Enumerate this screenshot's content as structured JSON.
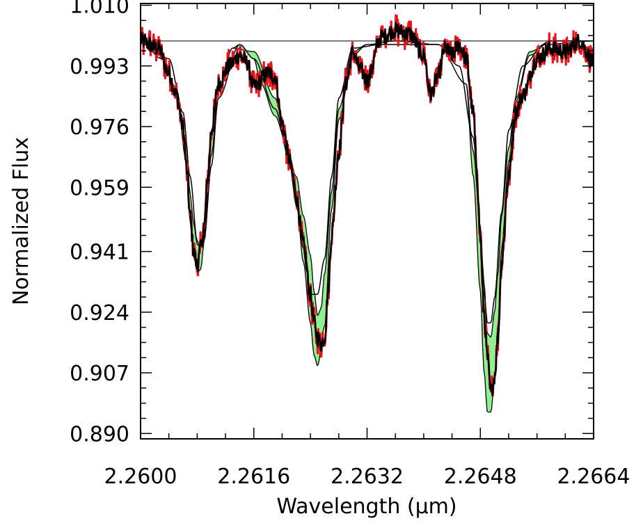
{
  "chart_data": {
    "type": "line",
    "xlabel": "Wavelength (μm)",
    "ylabel": "Normalized Flux",
    "xlim": [
      2.26,
      2.2664
    ],
    "ylim": [
      0.8885,
      1.0105
    ],
    "x_ticks": [
      2.26,
      2.2616,
      2.2632,
      2.2648,
      2.2664
    ],
    "x_tick_labels": [
      "2.2600",
      "2.2616",
      "2.2632",
      "2.2648",
      "2.2664"
    ],
    "y_ticks": [
      0.89,
      0.907,
      0.924,
      0.941,
      0.959,
      0.976,
      0.993,
      1.01
    ],
    "y_tick_labels": [
      "0.890",
      "0.907",
      "0.924",
      "0.941",
      "0.959",
      "0.976",
      "0.993",
      "1.010"
    ],
    "continuum_level": 1.0,
    "grid": false,
    "colors": {
      "observed_spectrum": "#e8141c",
      "smoothed_spectrum": "#000000",
      "model_band": "#8ff08f",
      "model_line": "#000000",
      "continuum": "#555555"
    },
    "series": [
      {
        "x": [
          2.26,
          2.2603,
          2.2605,
          2.26065,
          2.2607,
          2.26075,
          2.2608,
          2.26085,
          2.2609,
          2.26095,
          2.261,
          2.2611,
          2.2613,
          2.2614,
          2.2616,
          2.2617,
          2.2619,
          2.26205,
          2.2622,
          2.2623,
          2.2624,
          2.26245,
          2.2625,
          2.26255,
          2.2626,
          2.2627,
          2.2628,
          2.263,
          2.2632,
          2.2636,
          2.2642,
          2.2646,
          2.2647,
          2.2648,
          2.26485,
          2.2649,
          2.26495,
          2.265,
          2.26505,
          2.2651,
          2.2652,
          2.2653,
          2.2655,
          2.2658,
          2.2664
        ],
        "y": [
          1.0,
          0.995,
          0.987,
          0.971,
          0.957,
          0.949,
          0.943,
          0.942,
          0.946,
          0.957,
          0.973,
          0.987,
          0.998,
          0.999,
          0.995,
          0.988,
          0.979,
          0.972,
          0.962,
          0.951,
          0.94,
          0.93,
          0.923,
          0.925,
          0.935,
          0.958,
          0.981,
          0.997,
          0.999,
          1.0,
          0.999,
          0.988,
          0.969,
          0.948,
          0.933,
          0.918,
          0.917,
          0.924,
          0.935,
          0.951,
          0.97,
          0.984,
          0.997,
          1.0,
          1.0
        ]
      },
      {
        "x": [
          2.26,
          2.2604,
          2.2606,
          2.2607,
          2.2608,
          2.26085,
          2.2609,
          2.261,
          2.2611,
          2.2614,
          2.2616,
          2.2619,
          2.2621,
          2.2622,
          2.2623,
          2.26235,
          2.2624,
          2.2625,
          2.2626,
          2.2627,
          2.2628,
          2.263,
          2.2634,
          2.2642,
          2.2645,
          2.2647,
          2.2648,
          2.26485,
          2.2649,
          2.26495,
          2.265,
          2.2651,
          2.2652,
          2.2654,
          2.2657,
          2.2664
        ],
        "y": [
          1.0,
          0.995,
          0.98,
          0.962,
          0.944,
          0.942,
          0.945,
          0.965,
          0.984,
          0.999,
          0.995,
          0.981,
          0.967,
          0.954,
          0.942,
          0.935,
          0.929,
          0.929,
          0.939,
          0.962,
          0.984,
          0.998,
          0.999,
          0.999,
          0.993,
          0.973,
          0.946,
          0.93,
          0.921,
          0.921,
          0.928,
          0.952,
          0.975,
          0.993,
          0.999,
          1.0
        ]
      },
      {
        "x": [
          2.26,
          2.2603,
          2.2605,
          2.26065,
          2.2607,
          2.26075,
          2.2608,
          2.26085,
          2.2609,
          2.261,
          2.2611,
          2.2613,
          2.2616,
          2.2619,
          2.26205,
          2.2622,
          2.2623,
          2.2624,
          2.26245,
          2.2625,
          2.2626,
          2.2627,
          2.2628,
          2.263,
          2.2632,
          2.2636,
          2.2642,
          2.2646,
          2.2647,
          2.2648,
          2.26485,
          2.2649,
          2.26495,
          2.265,
          2.26505,
          2.2651,
          2.2652,
          2.2653,
          2.2655,
          2.2658,
          2.2664
        ],
        "y": [
          1.0,
          0.995,
          0.986,
          0.966,
          0.949,
          0.94,
          0.935,
          0.936,
          0.944,
          0.968,
          0.986,
          0.998,
          0.997,
          0.984,
          0.972,
          0.956,
          0.938,
          0.921,
          0.912,
          0.909,
          0.92,
          0.953,
          0.978,
          0.996,
          0.999,
          1.0,
          0.999,
          0.988,
          0.962,
          0.93,
          0.908,
          0.896,
          0.896,
          0.905,
          0.921,
          0.942,
          0.966,
          0.983,
          0.996,
          1.0,
          1.0
        ]
      },
      {
        "x": [
          2.26,
          2.26025,
          2.2604,
          2.2605,
          2.2606,
          2.26065,
          2.2607,
          2.26075,
          2.2608,
          2.26085,
          2.2609,
          2.26095,
          2.261,
          2.2611,
          2.26125,
          2.2614,
          2.2615,
          2.2616,
          2.2618,
          2.2619,
          2.262,
          2.2621,
          2.26215,
          2.2622,
          2.2623,
          2.2624,
          2.26245,
          2.2625,
          2.26255,
          2.2626,
          2.26265,
          2.2627,
          2.2628,
          2.2629,
          2.263,
          2.2631,
          2.2632,
          2.2634,
          2.2636,
          2.2638,
          2.264,
          2.2641,
          2.2642,
          2.2643,
          2.2644,
          2.2645,
          2.2646,
          2.2647,
          2.26475,
          2.2648,
          2.26485,
          2.2649,
          2.26495,
          2.265,
          2.26505,
          2.2651,
          2.2652,
          2.2653,
          2.2654,
          2.2656,
          2.2658,
          2.266,
          2.2662,
          2.2664
        ],
        "y": [
          1.0,
          0.998,
          0.991,
          0.985,
          0.976,
          0.964,
          0.951,
          0.941,
          0.937,
          0.942,
          0.948,
          0.962,
          0.975,
          0.988,
          0.993,
          0.996,
          0.994,
          0.987,
          0.991,
          0.99,
          0.977,
          0.967,
          0.962,
          0.956,
          0.943,
          0.929,
          0.921,
          0.917,
          0.915,
          0.917,
          0.93,
          0.946,
          0.969,
          0.988,
          0.997,
          0.992,
          0.989,
          1.001,
          1.003,
          1.002,
          0.996,
          0.985,
          0.99,
          0.998,
          0.996,
          0.999,
          0.995,
          0.98,
          0.964,
          0.945,
          0.924,
          0.911,
          0.901,
          0.906,
          0.917,
          0.938,
          0.962,
          0.98,
          0.985,
          0.995,
          0.998,
          0.997,
          1.0,
          0.994
        ]
      }
    ]
  }
}
